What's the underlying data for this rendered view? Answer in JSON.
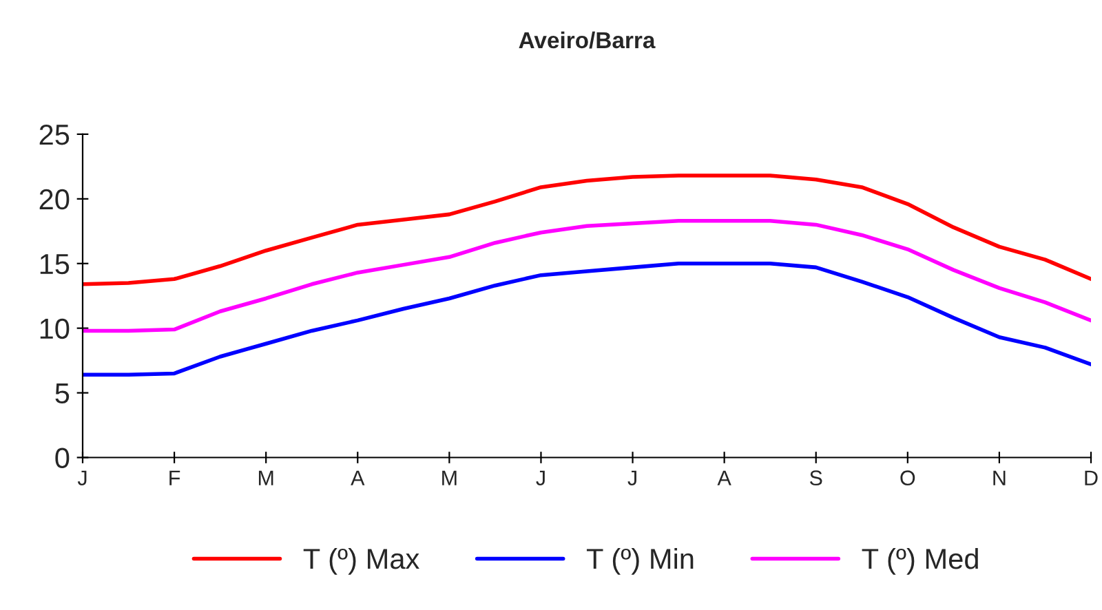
{
  "chart_data": {
    "type": "line",
    "title": "Aveiro/Barra",
    "categories": [
      "J",
      null,
      "F",
      null,
      "M",
      null,
      "A",
      null,
      "M",
      null,
      "J",
      null,
      "J",
      null,
      "A",
      null,
      "S",
      null,
      "O",
      null,
      "N",
      null,
      "D"
    ],
    "series": [
      {
        "name": "T (º) Max",
        "color": "#ff0000",
        "values": [
          13.4,
          13.5,
          13.8,
          14.8,
          16.0,
          17.0,
          18.0,
          18.4,
          18.8,
          19.8,
          20.9,
          21.4,
          21.7,
          21.8,
          21.8,
          21.8,
          21.5,
          20.9,
          19.6,
          17.8,
          16.3,
          15.3,
          13.8
        ]
      },
      {
        "name": "T (º) Min",
        "color": "#0000ff",
        "values": [
          6.4,
          6.4,
          6.5,
          7.8,
          8.8,
          9.8,
          10.6,
          11.5,
          12.3,
          13.3,
          14.1,
          14.4,
          14.7,
          15.0,
          15.0,
          15.0,
          14.7,
          13.6,
          12.4,
          10.8,
          9.3,
          8.5,
          7.2
        ]
      },
      {
        "name": "T (º) Med",
        "color": "#ff00ff",
        "values": [
          9.8,
          9.8,
          9.9,
          11.3,
          12.3,
          13.4,
          14.3,
          14.9,
          15.5,
          16.6,
          17.4,
          17.9,
          18.1,
          18.3,
          18.3,
          18.3,
          18.0,
          17.2,
          16.1,
          14.5,
          13.1,
          12.0,
          10.6
        ]
      }
    ],
    "ylim": [
      0,
      25
    ],
    "yticks": [
      0,
      5,
      10,
      15,
      20,
      25
    ],
    "grid": false,
    "legend": "bottom",
    "marker": "none",
    "line_style": "solid"
  }
}
